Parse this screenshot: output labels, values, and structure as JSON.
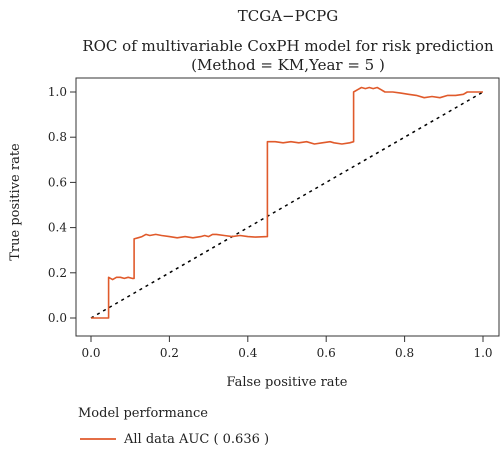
{
  "header": {
    "dataset_label": "TCGA−PCPG",
    "title": "ROC of multivariable CoxPH model for risk prediction",
    "subtitle": "(Method = KM,Year = 5 )"
  },
  "legend": {
    "title": "Model performance",
    "entry": "All data AUC ( 0.636 )"
  },
  "colors": {
    "roc_line": "#e05a2b",
    "diagonal": "#000000",
    "axis": "#333333"
  },
  "chart_data": {
    "type": "line",
    "title": "ROC of multivariable CoxPH model for risk prediction",
    "xlabel": "False positive rate",
    "ylabel": "True positive rate",
    "xlim": [
      0,
      1
    ],
    "ylim": [
      0,
      1
    ],
    "x_ticks": [
      "0.0",
      "0.2",
      "0.4",
      "0.6",
      "0.8",
      "1.0"
    ],
    "y_ticks": [
      "0.0",
      "0.2",
      "0.4",
      "0.6",
      "0.8",
      "1.0"
    ],
    "grid": false,
    "legend_position": "bottom-left",
    "reference_line": {
      "style": "dashed",
      "from": [
        0,
        0
      ],
      "to": [
        1,
        1
      ]
    },
    "series": [
      {
        "name": "All data",
        "auc": 0.636,
        "points": [
          [
            0.0,
            0.0
          ],
          [
            0.045,
            0.0
          ],
          [
            0.045,
            0.18
          ],
          [
            0.055,
            0.17
          ],
          [
            0.065,
            0.18
          ],
          [
            0.075,
            0.18
          ],
          [
            0.085,
            0.175
          ],
          [
            0.095,
            0.18
          ],
          [
            0.105,
            0.175
          ],
          [
            0.11,
            0.175
          ],
          [
            0.11,
            0.35
          ],
          [
            0.12,
            0.355
          ],
          [
            0.13,
            0.36
          ],
          [
            0.14,
            0.37
          ],
          [
            0.15,
            0.365
          ],
          [
            0.165,
            0.37
          ],
          [
            0.18,
            0.365
          ],
          [
            0.2,
            0.36
          ],
          [
            0.22,
            0.355
          ],
          [
            0.24,
            0.36
          ],
          [
            0.26,
            0.355
          ],
          [
            0.28,
            0.36
          ],
          [
            0.29,
            0.365
          ],
          [
            0.3,
            0.36
          ],
          [
            0.31,
            0.37
          ],
          [
            0.32,
            0.37
          ],
          [
            0.34,
            0.365
          ],
          [
            0.36,
            0.36
          ],
          [
            0.38,
            0.365
          ],
          [
            0.4,
            0.36
          ],
          [
            0.42,
            0.358
          ],
          [
            0.45,
            0.36
          ],
          [
            0.45,
            0.78
          ],
          [
            0.47,
            0.78
          ],
          [
            0.49,
            0.775
          ],
          [
            0.51,
            0.78
          ],
          [
            0.53,
            0.775
          ],
          [
            0.55,
            0.78
          ],
          [
            0.57,
            0.77
          ],
          [
            0.59,
            0.775
          ],
          [
            0.61,
            0.78
          ],
          [
            0.62,
            0.775
          ],
          [
            0.64,
            0.77
          ],
          [
            0.66,
            0.775
          ],
          [
            0.67,
            0.78
          ],
          [
            0.67,
            1.0
          ],
          [
            0.68,
            1.01
          ],
          [
            0.69,
            1.02
          ],
          [
            0.7,
            1.015
          ],
          [
            0.71,
            1.02
          ],
          [
            0.72,
            1.015
          ],
          [
            0.73,
            1.02
          ],
          [
            0.74,
            1.01
          ],
          [
            0.75,
            1.0
          ],
          [
            0.77,
            1.0
          ],
          [
            0.79,
            0.995
          ],
          [
            0.81,
            0.99
          ],
          [
            0.83,
            0.985
          ],
          [
            0.85,
            0.975
          ],
          [
            0.87,
            0.98
          ],
          [
            0.89,
            0.975
          ],
          [
            0.91,
            0.985
          ],
          [
            0.93,
            0.985
          ],
          [
            0.95,
            0.99
          ],
          [
            0.96,
            1.0
          ],
          [
            0.98,
            1.0
          ],
          [
            1.0,
            1.0
          ]
        ]
      }
    ]
  }
}
